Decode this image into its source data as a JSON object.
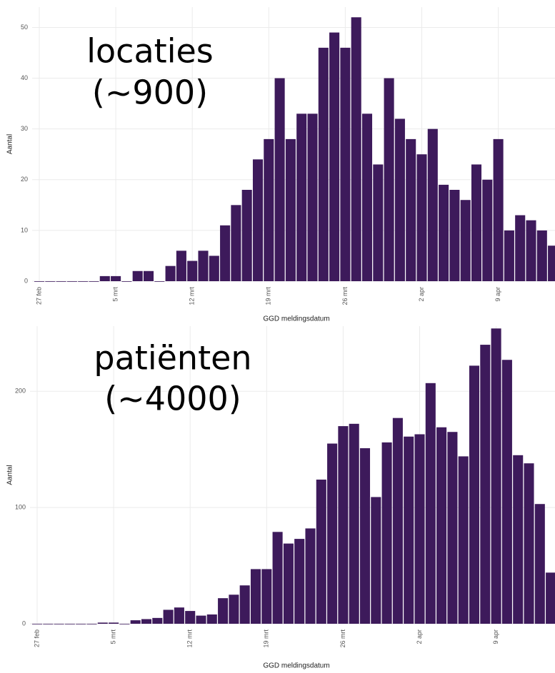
{
  "chart_data": [
    {
      "type": "bar",
      "annotation": [
        "locaties",
        "(~900)"
      ],
      "x_label": "GGD meldingsdatum",
      "y_label": "Aantal",
      "color": "#3d1a5b",
      "grid": true,
      "categories": [
        "27 feb",
        null,
        null,
        null,
        null,
        null,
        null,
        "5 mrt",
        null,
        null,
        null,
        null,
        null,
        null,
        "12 mrt",
        null,
        null,
        null,
        null,
        null,
        null,
        "19 mrt",
        null,
        null,
        null,
        null,
        null,
        null,
        "26 mrt",
        null,
        null,
        null,
        null,
        null,
        null,
        "2 apr",
        null,
        null,
        null,
        null,
        null,
        null,
        "9 apr",
        null,
        null,
        null,
        null,
        null
      ],
      "values": [
        0,
        0,
        0,
        0,
        0,
        0,
        1,
        1,
        0,
        2,
        2,
        0,
        3,
        6,
        4,
        6,
        5,
        11,
        15,
        18,
        24,
        28,
        40,
        28,
        33,
        33,
        46,
        49,
        46,
        52,
        33,
        23,
        40,
        32,
        28,
        25,
        30,
        19,
        18,
        16,
        23,
        20,
        28,
        10,
        13,
        12,
        10,
        7
      ],
      "ylim": [
        0,
        54
      ],
      "yticks": [
        0,
        10,
        20,
        30,
        40,
        50
      ]
    },
    {
      "type": "bar",
      "annotation": [
        "patiënten",
        "(~4000)"
      ],
      "x_label": "GGD meldingsdatum",
      "y_label": "Aantal",
      "color": "#3d1a5b",
      "grid": true,
      "categories": [
        "27 feb",
        null,
        null,
        null,
        null,
        null,
        null,
        "5 mrt",
        null,
        null,
        null,
        null,
        null,
        null,
        "12 mrt",
        null,
        null,
        null,
        null,
        null,
        null,
        "19 mrt",
        null,
        null,
        null,
        null,
        null,
        null,
        "26 mrt",
        null,
        null,
        null,
        null,
        null,
        null,
        "2 apr",
        null,
        null,
        null,
        null,
        null,
        null,
        "9 apr",
        null,
        null,
        null,
        null,
        null
      ],
      "values": [
        0,
        0,
        0,
        0,
        0,
        0,
        1,
        1,
        0,
        3,
        4,
        5,
        12,
        14,
        11,
        7,
        8,
        22,
        25,
        33,
        47,
        47,
        79,
        69,
        73,
        82,
        124,
        155,
        170,
        172,
        151,
        109,
        156,
        177,
        161,
        163,
        207,
        169,
        165,
        144,
        222,
        240,
        254,
        227,
        145,
        138,
        103,
        44
      ],
      "ylim": [
        0,
        256
      ],
      "yticks": [
        0,
        100,
        200
      ]
    }
  ]
}
